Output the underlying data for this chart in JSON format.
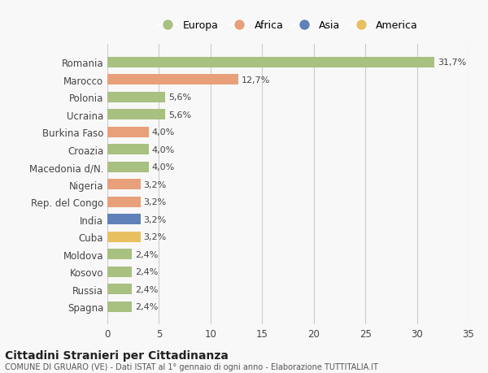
{
  "countries": [
    "Romania",
    "Marocco",
    "Polonia",
    "Ucraina",
    "Burkina Faso",
    "Croazia",
    "Macedonia d/N.",
    "Nigeria",
    "Rep. del Congo",
    "India",
    "Cuba",
    "Moldova",
    "Kosovo",
    "Russia",
    "Spagna"
  ],
  "values": [
    31.7,
    12.7,
    5.6,
    5.6,
    4.0,
    4.0,
    4.0,
    3.2,
    3.2,
    3.2,
    3.2,
    2.4,
    2.4,
    2.4,
    2.4
  ],
  "labels": [
    "31,7%",
    "12,7%",
    "5,6%",
    "5,6%",
    "4,0%",
    "4,0%",
    "4,0%",
    "3,2%",
    "3,2%",
    "3,2%",
    "3,2%",
    "2,4%",
    "2,4%",
    "2,4%",
    "2,4%"
  ],
  "colors": [
    "#a8c080",
    "#e8a07a",
    "#a8c080",
    "#a8c080",
    "#e8a07a",
    "#a8c080",
    "#a8c080",
    "#e8a07a",
    "#e8a07a",
    "#6080b8",
    "#e8c060",
    "#a8c080",
    "#a8c080",
    "#a8c080",
    "#a8c080"
  ],
  "legend_labels": [
    "Europa",
    "Africa",
    "Asia",
    "America"
  ],
  "legend_colors": [
    "#a8c080",
    "#e8a07a",
    "#6080b8",
    "#e8c060"
  ],
  "xlim": [
    0,
    35
  ],
  "xticks": [
    0,
    5,
    10,
    15,
    20,
    25,
    30,
    35
  ],
  "title": "Cittadini Stranieri per Cittadinanza",
  "subtitle": "COMUNE DI GRUARO (VE) - Dati ISTAT al 1° gennaio di ogni anno - Elaborazione TUTTITALIA.IT",
  "bg_color": "#f8f8f8",
  "grid_color": "#cccccc",
  "bar_height": 0.6
}
